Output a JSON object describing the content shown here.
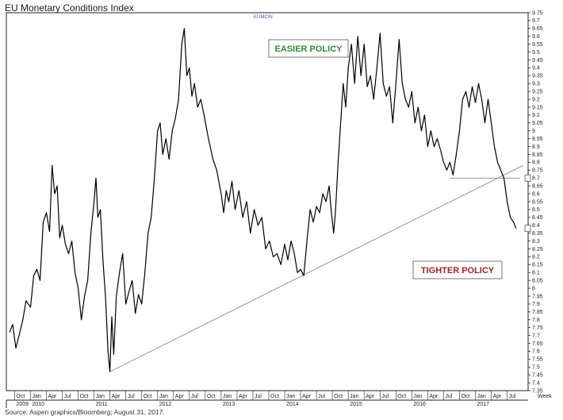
{
  "title": "EU Monetary Conditions Index",
  "source": "Source: Aspen graphics/Bloomberg; August 31, 2017.",
  "chart_data": {
    "type": "line",
    "ticker": "EUMCIN",
    "xaxis_label": "Week",
    "ylim": [
      7.35,
      9.75
    ],
    "y_ticks": [
      "7.35",
      "7.4",
      "7.45",
      "7.5",
      "7.55",
      "7.6",
      "7.65",
      "7.7",
      "7.75",
      "7.8",
      "7.85",
      "7.9",
      "7.95",
      "8",
      "8.05",
      "8.1",
      "8.15",
      "8.2",
      "8.25",
      "8.3",
      "8.35",
      "8.4",
      "8.45",
      "8.5",
      "8.55",
      "8.6",
      "8.65",
      "8.7",
      "8.75",
      "8.8",
      "8.85",
      "8.9",
      "8.95",
      "9",
      "9.05",
      "9.1",
      "9.15",
      "9.2",
      "9.25",
      "9.3",
      "9.35",
      "9.4",
      "9.45",
      "9.5",
      "9.55",
      "9.6",
      "9.65",
      "9.7",
      "9.75"
    ],
    "x_ticks": [
      {
        "label": "Oct",
        "t": 2009.75
      },
      {
        "label": "Jan",
        "t": 2010.0
      },
      {
        "label": "Apr",
        "t": 2010.25
      },
      {
        "label": "Jul",
        "t": 2010.5
      },
      {
        "label": "Oct",
        "t": 2010.75
      },
      {
        "label": "Jan",
        "t": 2011.0
      },
      {
        "label": "Apr",
        "t": 2011.25
      },
      {
        "label": "Jul",
        "t": 2011.5
      },
      {
        "label": "Oct",
        "t": 2011.75
      },
      {
        "label": "Jan",
        "t": 2012.0
      },
      {
        "label": "Apr",
        "t": 2012.25
      },
      {
        "label": "Jul",
        "t": 2012.5
      },
      {
        "label": "Oct",
        "t": 2012.75
      },
      {
        "label": "Jan",
        "t": 2013.0
      },
      {
        "label": "Apr",
        "t": 2013.25
      },
      {
        "label": "Jul",
        "t": 2013.5
      },
      {
        "label": "Oct",
        "t": 2013.75
      },
      {
        "label": "Jan",
        "t": 2014.0
      },
      {
        "label": "Apr",
        "t": 2014.25
      },
      {
        "label": "Jul",
        "t": 2014.5
      },
      {
        "label": "Oct",
        "t": 2014.75
      },
      {
        "label": "Jan",
        "t": 2015.0
      },
      {
        "label": "Apr",
        "t": 2015.25
      },
      {
        "label": "Jul",
        "t": 2015.5
      },
      {
        "label": "Oct",
        "t": 2015.75
      },
      {
        "label": "Jan",
        "t": 2016.0
      },
      {
        "label": "Apr",
        "t": 2016.25
      },
      {
        "label": "Jul",
        "t": 2016.5
      },
      {
        "label": "Oct",
        "t": 2016.75
      },
      {
        "label": "Jan",
        "t": 2017.0
      },
      {
        "label": "Apr",
        "t": 2017.25
      },
      {
        "label": "Jul",
        "t": 2017.5
      }
    ],
    "year_labels": [
      {
        "label": "2009",
        "t": 2009.75
      },
      {
        "label": "2010",
        "t": 2010.0
      },
      {
        "label": "2011",
        "t": 2011.0
      },
      {
        "label": "2012",
        "t": 2012.0
      },
      {
        "label": "2013",
        "t": 2013.0
      },
      {
        "label": "2014",
        "t": 2014.0
      },
      {
        "label": "2015",
        "t": 2015.0
      },
      {
        "label": "2016",
        "t": 2016.0
      },
      {
        "label": "2017",
        "t": 2017.0
      }
    ],
    "annotations": [
      {
        "text": "EASIER POLICY",
        "color": "#2e8b3a"
      },
      {
        "text": "TIGHTER POLICY",
        "color": "#b01c1c"
      }
    ],
    "trendline": [
      {
        "t": 2011.25,
        "v": 7.47
      },
      {
        "t": 2017.75,
        "v": 8.78
      }
    ],
    "support_line": [
      {
        "t": 2016.6,
        "v": 8.7
      },
      {
        "t": 2017.7,
        "v": 8.7
      }
    ],
    "right_markers": [
      "8.7",
      "8.38"
    ],
    "series": [
      {
        "color": "#000000",
        "points": [
          {
            "t": 2009.67,
            "v": 7.72
          },
          {
            "t": 2009.72,
            "v": 7.77
          },
          {
            "t": 2009.77,
            "v": 7.62
          },
          {
            "t": 2009.82,
            "v": 7.7
          },
          {
            "t": 2009.88,
            "v": 7.8
          },
          {
            "t": 2009.93,
            "v": 7.92
          },
          {
            "t": 2010.0,
            "v": 7.88
          },
          {
            "t": 2010.05,
            "v": 8.08
          },
          {
            "t": 2010.1,
            "v": 8.12
          },
          {
            "t": 2010.15,
            "v": 8.05
          },
          {
            "t": 2010.2,
            "v": 8.42
          },
          {
            "t": 2010.25,
            "v": 8.48
          },
          {
            "t": 2010.3,
            "v": 8.36
          },
          {
            "t": 2010.34,
            "v": 8.78
          },
          {
            "t": 2010.38,
            "v": 8.6
          },
          {
            "t": 2010.42,
            "v": 8.65
          },
          {
            "t": 2010.46,
            "v": 8.32
          },
          {
            "t": 2010.5,
            "v": 8.4
          },
          {
            "t": 2010.55,
            "v": 8.28
          },
          {
            "t": 2010.6,
            "v": 8.22
          },
          {
            "t": 2010.65,
            "v": 8.3
          },
          {
            "t": 2010.7,
            "v": 8.1
          },
          {
            "t": 2010.75,
            "v": 8.0
          },
          {
            "t": 2010.8,
            "v": 7.8
          },
          {
            "t": 2010.85,
            "v": 7.95
          },
          {
            "t": 2010.9,
            "v": 8.05
          },
          {
            "t": 2010.95,
            "v": 8.35
          },
          {
            "t": 2011.0,
            "v": 8.55
          },
          {
            "t": 2011.03,
            "v": 8.7
          },
          {
            "t": 2011.06,
            "v": 8.45
          },
          {
            "t": 2011.1,
            "v": 8.5
          },
          {
            "t": 2011.14,
            "v": 8.18
          },
          {
            "t": 2011.18,
            "v": 7.95
          },
          {
            "t": 2011.22,
            "v": 7.6
          },
          {
            "t": 2011.25,
            "v": 7.47
          },
          {
            "t": 2011.28,
            "v": 7.82
          },
          {
            "t": 2011.31,
            "v": 7.58
          },
          {
            "t": 2011.35,
            "v": 7.95
          },
          {
            "t": 2011.4,
            "v": 8.1
          },
          {
            "t": 2011.45,
            "v": 8.22
          },
          {
            "t": 2011.5,
            "v": 7.9
          },
          {
            "t": 2011.55,
            "v": 7.98
          },
          {
            "t": 2011.6,
            "v": 8.05
          },
          {
            "t": 2011.65,
            "v": 7.84
          },
          {
            "t": 2011.7,
            "v": 7.96
          },
          {
            "t": 2011.75,
            "v": 7.9
          },
          {
            "t": 2011.8,
            "v": 8.1
          },
          {
            "t": 2011.85,
            "v": 8.35
          },
          {
            "t": 2011.9,
            "v": 8.45
          },
          {
            "t": 2011.95,
            "v": 8.7
          },
          {
            "t": 2012.0,
            "v": 9.0
          },
          {
            "t": 2012.04,
            "v": 9.05
          },
          {
            "t": 2012.08,
            "v": 8.85
          },
          {
            "t": 2012.13,
            "v": 8.95
          },
          {
            "t": 2012.18,
            "v": 8.82
          },
          {
            "t": 2012.23,
            "v": 9.0
          },
          {
            "t": 2012.28,
            "v": 9.08
          },
          {
            "t": 2012.33,
            "v": 9.2
          },
          {
            "t": 2012.38,
            "v": 9.55
          },
          {
            "t": 2012.42,
            "v": 9.65
          },
          {
            "t": 2012.46,
            "v": 9.35
          },
          {
            "t": 2012.5,
            "v": 9.4
          },
          {
            "t": 2012.54,
            "v": 9.22
          },
          {
            "t": 2012.58,
            "v": 9.3
          },
          {
            "t": 2012.63,
            "v": 9.15
          },
          {
            "t": 2012.68,
            "v": 9.2
          },
          {
            "t": 2012.73,
            "v": 9.1
          },
          {
            "t": 2012.8,
            "v": 8.95
          },
          {
            "t": 2012.87,
            "v": 8.82
          },
          {
            "t": 2012.93,
            "v": 8.75
          },
          {
            "t": 2013.0,
            "v": 8.6
          },
          {
            "t": 2013.04,
            "v": 8.48
          },
          {
            "t": 2013.08,
            "v": 8.62
          },
          {
            "t": 2013.12,
            "v": 8.55
          },
          {
            "t": 2013.17,
            "v": 8.68
          },
          {
            "t": 2013.22,
            "v": 8.5
          },
          {
            "t": 2013.28,
            "v": 8.62
          },
          {
            "t": 2013.34,
            "v": 8.45
          },
          {
            "t": 2013.4,
            "v": 8.55
          },
          {
            "t": 2013.46,
            "v": 8.35
          },
          {
            "t": 2013.52,
            "v": 8.5
          },
          {
            "t": 2013.58,
            "v": 8.4
          },
          {
            "t": 2013.64,
            "v": 8.45
          },
          {
            "t": 2013.7,
            "v": 8.25
          },
          {
            "t": 2013.76,
            "v": 8.3
          },
          {
            "t": 2013.82,
            "v": 8.2
          },
          {
            "t": 2013.88,
            "v": 8.22
          },
          {
            "t": 2013.94,
            "v": 8.15
          },
          {
            "t": 2014.0,
            "v": 8.28
          },
          {
            "t": 2014.05,
            "v": 8.18
          },
          {
            "t": 2014.1,
            "v": 8.3
          },
          {
            "t": 2014.15,
            "v": 8.22
          },
          {
            "t": 2014.2,
            "v": 8.1
          },
          {
            "t": 2014.25,
            "v": 8.12
          },
          {
            "t": 2014.3,
            "v": 8.08
          },
          {
            "t": 2014.35,
            "v": 8.3
          },
          {
            "t": 2014.4,
            "v": 8.5
          },
          {
            "t": 2014.45,
            "v": 8.42
          },
          {
            "t": 2014.5,
            "v": 8.52
          },
          {
            "t": 2014.55,
            "v": 8.48
          },
          {
            "t": 2014.6,
            "v": 8.6
          },
          {
            "t": 2014.65,
            "v": 8.55
          },
          {
            "t": 2014.7,
            "v": 8.65
          },
          {
            "t": 2014.73,
            "v": 8.5
          },
          {
            "t": 2014.77,
            "v": 8.35
          },
          {
            "t": 2014.8,
            "v": 8.5
          },
          {
            "t": 2014.84,
            "v": 8.8
          },
          {
            "t": 2014.88,
            "v": 9.05
          },
          {
            "t": 2014.92,
            "v": 9.3
          },
          {
            "t": 2014.96,
            "v": 9.15
          },
          {
            "t": 2015.0,
            "v": 9.4
          },
          {
            "t": 2015.05,
            "v": 9.55
          },
          {
            "t": 2015.1,
            "v": 9.3
          },
          {
            "t": 2015.15,
            "v": 9.6
          },
          {
            "t": 2015.2,
            "v": 9.35
          },
          {
            "t": 2015.25,
            "v": 9.55
          },
          {
            "t": 2015.3,
            "v": 9.28
          },
          {
            "t": 2015.35,
            "v": 9.35
          },
          {
            "t": 2015.4,
            "v": 9.2
          },
          {
            "t": 2015.45,
            "v": 9.4
          },
          {
            "t": 2015.5,
            "v": 9.62
          },
          {
            "t": 2015.55,
            "v": 9.3
          },
          {
            "t": 2015.6,
            "v": 9.22
          },
          {
            "t": 2015.65,
            "v": 9.28
          },
          {
            "t": 2015.7,
            "v": 9.05
          },
          {
            "t": 2015.75,
            "v": 9.3
          },
          {
            "t": 2015.8,
            "v": 9.58
          },
          {
            "t": 2015.85,
            "v": 9.3
          },
          {
            "t": 2015.9,
            "v": 9.2
          },
          {
            "t": 2015.95,
            "v": 9.15
          },
          {
            "t": 2016.0,
            "v": 9.25
          },
          {
            "t": 2016.05,
            "v": 9.05
          },
          {
            "t": 2016.1,
            "v": 9.15
          },
          {
            "t": 2016.15,
            "v": 9.0
          },
          {
            "t": 2016.2,
            "v": 9.1
          },
          {
            "t": 2016.25,
            "v": 8.9
          },
          {
            "t": 2016.3,
            "v": 9.0
          },
          {
            "t": 2016.35,
            "v": 8.9
          },
          {
            "t": 2016.4,
            "v": 8.95
          },
          {
            "t": 2016.45,
            "v": 8.88
          },
          {
            "t": 2016.5,
            "v": 8.8
          },
          {
            "t": 2016.55,
            "v": 8.75
          },
          {
            "t": 2016.6,
            "v": 8.8
          },
          {
            "t": 2016.65,
            "v": 8.72
          },
          {
            "t": 2016.7,
            "v": 8.85
          },
          {
            "t": 2016.75,
            "v": 9.0
          },
          {
            "t": 2016.8,
            "v": 9.2
          },
          {
            "t": 2016.85,
            "v": 9.25
          },
          {
            "t": 2016.9,
            "v": 9.15
          },
          {
            "t": 2016.95,
            "v": 9.28
          },
          {
            "t": 2017.0,
            "v": 9.18
          },
          {
            "t": 2017.05,
            "v": 9.3
          },
          {
            "t": 2017.1,
            "v": 9.2
          },
          {
            "t": 2017.15,
            "v": 9.05
          },
          {
            "t": 2017.2,
            "v": 9.2
          },
          {
            "t": 2017.25,
            "v": 9.05
          },
          {
            "t": 2017.3,
            "v": 8.9
          },
          {
            "t": 2017.35,
            "v": 8.8
          },
          {
            "t": 2017.4,
            "v": 8.75
          },
          {
            "t": 2017.45,
            "v": 8.7
          },
          {
            "t": 2017.5,
            "v": 8.55
          },
          {
            "t": 2017.55,
            "v": 8.45
          },
          {
            "t": 2017.6,
            "v": 8.42
          },
          {
            "t": 2017.64,
            "v": 8.38
          }
        ]
      }
    ]
  }
}
